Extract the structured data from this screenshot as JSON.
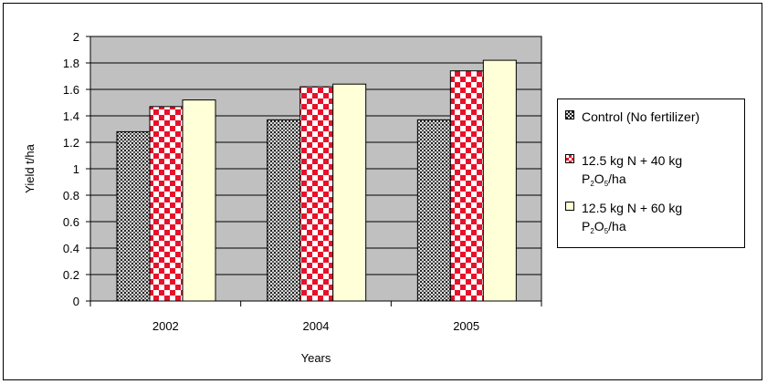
{
  "chart_data": {
    "type": "bar",
    "title": "",
    "xlabel": "Years",
    "ylabel": "Yield t/ha",
    "ylim": [
      0,
      2
    ],
    "yticks": [
      "0",
      "0.2",
      "0.4",
      "0.6",
      "0.8",
      "1",
      "1.2",
      "1.4",
      "1.6",
      "1.8",
      "2"
    ],
    "categories": [
      "2002",
      "2004",
      "2005"
    ],
    "grid": true,
    "legend_position": "right",
    "series": [
      {
        "name": "Control (No fertilizer)",
        "values": [
          1.28,
          1.37,
          1.37
        ]
      },
      {
        "name": "12.5 kg N + 40 kg P2O5/ha",
        "values": [
          1.47,
          1.62,
          1.74
        ]
      },
      {
        "name": "12.5 kg N + 60 kg P2O5/ha",
        "values": [
          1.52,
          1.64,
          1.82
        ]
      }
    ]
  },
  "legend": {
    "items": [
      {
        "line1": "Control (No fertilizer)",
        "line2_pre": "",
        "line2_sub": "",
        "line2_mid": "",
        "line2_sub2": "",
        "line2_post": ""
      },
      {
        "line1": "12.5 kg N + 40 kg",
        "line2_pre": "P",
        "line2_sub": "2",
        "line2_mid": "O",
        "line2_sub2": "5",
        "line2_post": "/ha"
      },
      {
        "line1": "12.5 kg N + 60 kg",
        "line2_pre": "P",
        "line2_sub": "2",
        "line2_mid": "O",
        "line2_sub2": "5",
        "line2_post": "/ha"
      }
    ]
  },
  "colors": {
    "plot_background": "#c0c0c0",
    "control_dark": "#222222",
    "control_light": "#d8d8d8",
    "checker_red": "#e8102a",
    "checker_white": "#ffffff",
    "fill_cream": "#ffffd8"
  }
}
